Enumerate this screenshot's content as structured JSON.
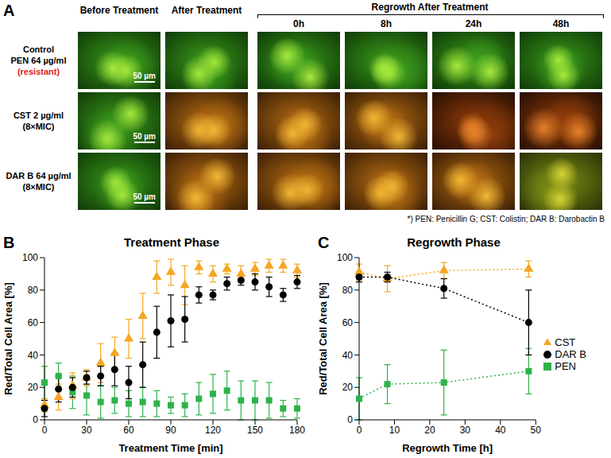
{
  "panel_a": {
    "label": "A",
    "columns": [
      "Before Treatment",
      "After Treatment"
    ],
    "regrowth_header": "Regrowth After Treatment",
    "regrowth_columns": [
      "0h",
      "8h",
      "24h",
      "48h"
    ],
    "rows": [
      {
        "lines": [
          "Control",
          "PEN 64 µg/ml",
          "(resistant)"
        ],
        "line_colors": [
          "#000000",
          "#000000",
          "#e02020"
        ]
      },
      {
        "lines": [
          "CST 2 µg/ml",
          "(8×MIC)"
        ],
        "line_colors": [
          "#000000",
          "#000000"
        ]
      },
      {
        "lines": [
          "DAR B 64 µg/ml",
          "(8×MIC)"
        ],
        "line_colors": [
          "#000000",
          "#000000"
        ]
      }
    ],
    "scale_bar": "50 µm",
    "footnote": "*) PEN: Penicillin G; CST: Colistin; DAR B: Darobactin B"
  },
  "chart_data": [
    {
      "type": "scatter",
      "label": "B",
      "title": "Treatment Phase",
      "x_label": "Treatment Time [min]",
      "y_label": "Red/Total Cell Area [%]",
      "x": [
        0,
        10,
        20,
        30,
        40,
        50,
        60,
        70,
        80,
        90,
        100,
        110,
        120,
        130,
        140,
        150,
        160,
        170,
        180
      ],
      "xlim": [
        0,
        180
      ],
      "xticks": [
        0,
        30,
        60,
        90,
        120,
        150,
        180
      ],
      "ylim": [
        0,
        100
      ],
      "yticks": [
        0,
        20,
        40,
        60,
        80,
        100
      ],
      "grid": false,
      "series": [
        {
          "name": "PEN",
          "color": "#2db34a",
          "marker": "square",
          "line_style": "none",
          "values": [
            23,
            27,
            17,
            15,
            11,
            12,
            10,
            11,
            10,
            9,
            9,
            13,
            16,
            18,
            12,
            12,
            12,
            7,
            7
          ],
          "errors": [
            10,
            8,
            10,
            12,
            10,
            8,
            8,
            9,
            8,
            5,
            7,
            10,
            12,
            12,
            12,
            12,
            11,
            5,
            6
          ]
        },
        {
          "name": "CST",
          "color": "#f5a623",
          "marker": "triangle",
          "line_style": "none",
          "values": [
            9,
            14,
            21,
            26,
            35,
            41,
            50,
            64,
            88,
            91,
            83,
            94,
            90,
            93,
            90,
            93,
            95,
            95,
            92
          ],
          "errors": [
            4,
            8,
            8,
            5,
            12,
            10,
            12,
            14,
            10,
            8,
            12,
            4,
            5,
            3,
            5,
            4,
            4,
            4,
            4
          ]
        },
        {
          "name": "DAR B",
          "color": "#000000",
          "marker": "circle",
          "line_style": "none",
          "values": [
            7,
            19,
            20,
            26,
            27,
            31,
            23,
            34,
            54,
            61,
            62,
            77,
            77,
            84,
            86,
            85,
            82,
            77,
            85
          ],
          "errors": [
            5,
            8,
            6,
            4,
            6,
            10,
            10,
            14,
            16,
            16,
            14,
            5,
            3,
            4,
            3,
            5,
            6,
            4,
            4
          ]
        }
      ]
    },
    {
      "type": "scatter",
      "label": "C",
      "title": "Regrowth Phase",
      "x_label": "Regrowth Time [h]",
      "y_label": "Red/Total Cell Area [%]",
      "x": [
        0,
        8,
        24,
        48
      ],
      "xlim": [
        0,
        50
      ],
      "xticks": [
        0,
        10,
        20,
        30,
        40,
        50
      ],
      "ylim": [
        0,
        100
      ],
      "yticks": [
        0,
        20,
        40,
        60,
        80,
        100
      ],
      "grid": false,
      "legend": "right",
      "series": [
        {
          "name": "PEN",
          "color": "#2db34a",
          "marker": "square",
          "line_style": "dotted",
          "values": [
            13,
            22,
            23,
            30
          ],
          "errors": [
            13,
            12,
            20,
            14
          ]
        },
        {
          "name": "CST",
          "color": "#f5a623",
          "marker": "triangle",
          "line_style": "dotted",
          "values": [
            91,
            87,
            92,
            93
          ],
          "errors": [
            5,
            8,
            5,
            5
          ]
        },
        {
          "name": "DAR B",
          "color": "#000000",
          "marker": "circle",
          "line_style": "dotted",
          "values": [
            88,
            88,
            81,
            60
          ],
          "errors": [
            3,
            3,
            6,
            20
          ]
        }
      ]
    }
  ]
}
